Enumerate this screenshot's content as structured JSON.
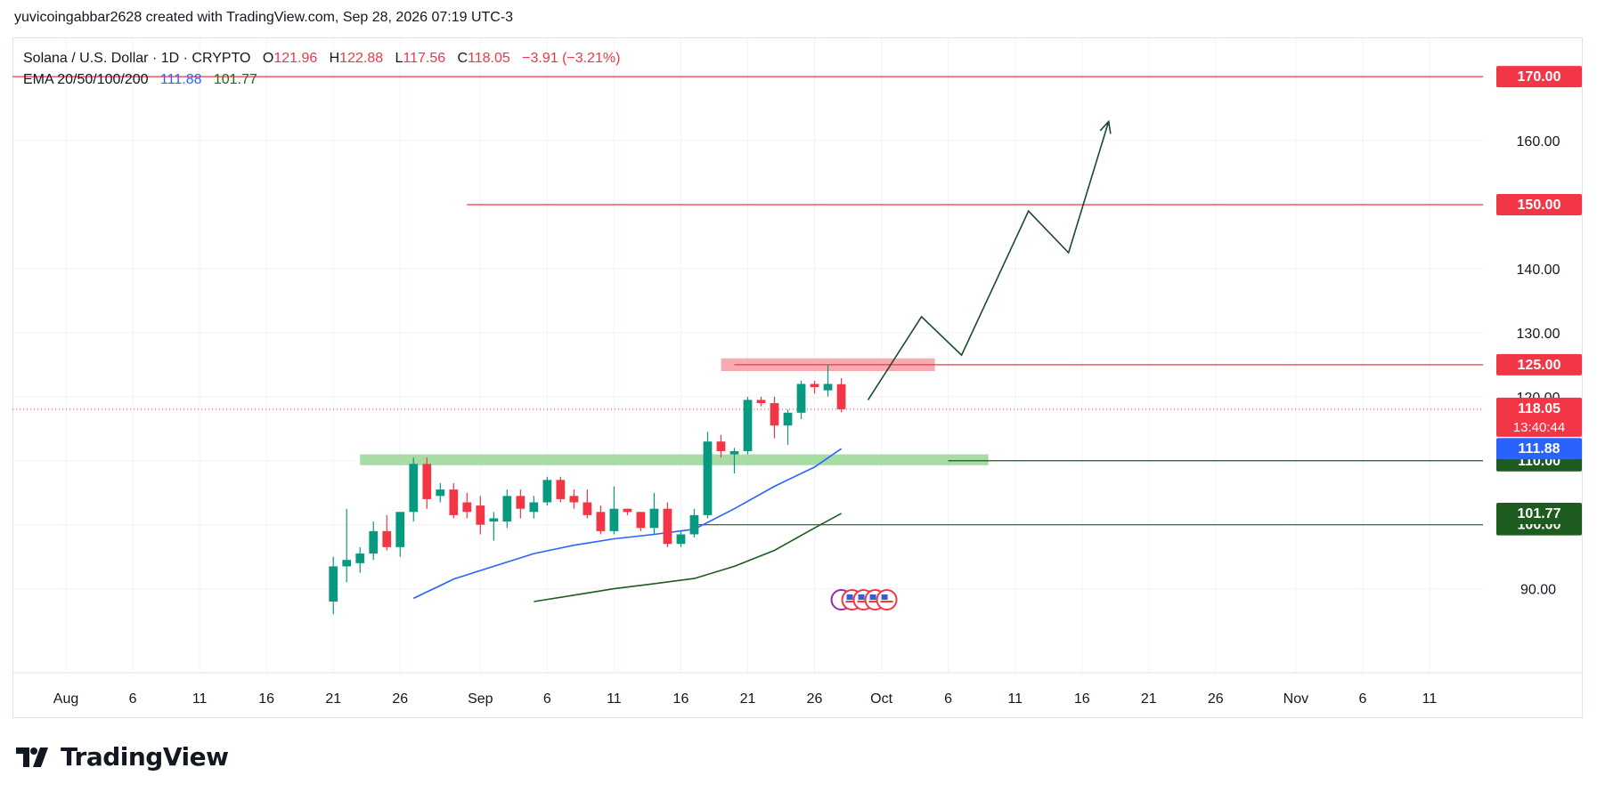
{
  "header": {
    "text": "yuvicoingabbar2628 created with TradingView.com, Sep 28, 2026 07:19 UTC-3"
  },
  "legend": {
    "symbol": "Solana / U.S. Dollar · 1D · CRYPTO",
    "o_label": "O",
    "o_value": "121.96",
    "h_label": "H",
    "h_value": "122.88",
    "l_label": "L",
    "l_value": "117.56",
    "c_label": "C",
    "c_value": "118.05",
    "change": "−3.91 (−3.21%)",
    "ema_label": "EMA 20/50/100/200",
    "ema_20": "111.88",
    "ema_50": "101.77"
  },
  "brand": {
    "name": "TradingView"
  },
  "colors": {
    "up": "#089981",
    "down": "#f23645",
    "grid": "#f0f3fa",
    "text": "#131722",
    "ema20": "#2962ff",
    "ema50": "#1e5b1e",
    "resistance": "#f23645",
    "support": "#1e5b1e",
    "zone_red": "#f7a1a8",
    "zone_green": "#9fd89b",
    "projection": "#1c4a2a"
  },
  "chart_data": {
    "type": "candlestick",
    "symbol": "SOLUSD",
    "interval": "1D",
    "ylim": [
      88,
      176
    ],
    "yticks": [
      90,
      100,
      110,
      120,
      130,
      140,
      160
    ],
    "xlim": [
      "2026-07-28",
      "2026-11-15"
    ],
    "x_ticks": [
      {
        "date": "2026-08-01",
        "label": "Aug"
      },
      {
        "date": "2026-08-06",
        "label": "6"
      },
      {
        "date": "2026-08-11",
        "label": "11"
      },
      {
        "date": "2026-08-16",
        "label": "16"
      },
      {
        "date": "2026-08-21",
        "label": "21"
      },
      {
        "date": "2026-08-26",
        "label": "26"
      },
      {
        "date": "2026-09-01",
        "label": "Sep"
      },
      {
        "date": "2026-09-06",
        "label": "6"
      },
      {
        "date": "2026-09-11",
        "label": "11"
      },
      {
        "date": "2026-09-16",
        "label": "16"
      },
      {
        "date": "2026-09-21",
        "label": "21"
      },
      {
        "date": "2026-09-26",
        "label": "26"
      },
      {
        "date": "2026-10-01",
        "label": "Oct"
      },
      {
        "date": "2026-10-06",
        "label": "6"
      },
      {
        "date": "2026-10-11",
        "label": "11"
      },
      {
        "date": "2026-10-16",
        "label": "16"
      },
      {
        "date": "2026-10-21",
        "label": "21"
      },
      {
        "date": "2026-10-26",
        "label": "26"
      },
      {
        "date": "2026-11-01",
        "label": "Nov"
      },
      {
        "date": "2026-11-06",
        "label": "6"
      },
      {
        "date": "2026-11-11",
        "label": "11"
      }
    ],
    "candles": [
      {
        "d": "2026-08-21",
        "o": 88.0,
        "h": 95.0,
        "l": 86.0,
        "c": 93.5
      },
      {
        "d": "2026-08-22",
        "o": 93.5,
        "h": 102.5,
        "l": 91.0,
        "c": 94.5
      },
      {
        "d": "2026-08-23",
        "o": 94.0,
        "h": 96.5,
        "l": 92.5,
        "c": 95.5
      },
      {
        "d": "2026-08-24",
        "o": 95.5,
        "h": 100.5,
        "l": 94.5,
        "c": 99.0
      },
      {
        "d": "2026-08-25",
        "o": 99.0,
        "h": 101.5,
        "l": 96.0,
        "c": 96.5
      },
      {
        "d": "2026-08-26",
        "o": 96.5,
        "h": 102.0,
        "l": 95.0,
        "c": 102.0
      },
      {
        "d": "2026-08-27",
        "o": 102.0,
        "h": 110.5,
        "l": 100.5,
        "c": 109.5
      },
      {
        "d": "2026-08-28",
        "o": 109.5,
        "h": 110.5,
        "l": 102.5,
        "c": 104.0
      },
      {
        "d": "2026-08-29",
        "o": 104.5,
        "h": 106.5,
        "l": 103.5,
        "c": 105.5
      },
      {
        "d": "2026-08-30",
        "o": 105.5,
        "h": 106.5,
        "l": 101.0,
        "c": 101.5
      },
      {
        "d": "2026-08-31",
        "o": 103.5,
        "h": 105.0,
        "l": 101.0,
        "c": 102.0
      },
      {
        "d": "2026-09-01",
        "o": 103.0,
        "h": 104.5,
        "l": 98.5,
        "c": 100.0
      },
      {
        "d": "2026-09-02",
        "o": 100.5,
        "h": 102.0,
        "l": 97.5,
        "c": 101.0
      },
      {
        "d": "2026-09-03",
        "o": 100.5,
        "h": 105.5,
        "l": 99.5,
        "c": 104.5
      },
      {
        "d": "2026-09-04",
        "o": 104.5,
        "h": 105.5,
        "l": 101.0,
        "c": 102.5
      },
      {
        "d": "2026-09-05",
        "o": 102.0,
        "h": 104.5,
        "l": 101.0,
        "c": 103.5
      },
      {
        "d": "2026-09-06",
        "o": 103.5,
        "h": 107.5,
        "l": 103.0,
        "c": 107.0
      },
      {
        "d": "2026-09-07",
        "o": 107.0,
        "h": 107.5,
        "l": 103.5,
        "c": 104.0
      },
      {
        "d": "2026-09-08",
        "o": 104.5,
        "h": 105.5,
        "l": 102.5,
        "c": 103.5
      },
      {
        "d": "2026-09-09",
        "o": 103.5,
        "h": 105.5,
        "l": 101.0,
        "c": 101.5
      },
      {
        "d": "2026-09-10",
        "o": 102.0,
        "h": 103.0,
        "l": 98.5,
        "c": 99.0
      },
      {
        "d": "2026-09-11",
        "o": 99.0,
        "h": 106.0,
        "l": 98.5,
        "c": 102.5
      },
      {
        "d": "2026-09-12",
        "o": 102.5,
        "h": 102.5,
        "l": 101.5,
        "c": 102.0
      },
      {
        "d": "2026-09-13",
        "o": 102.0,
        "h": 102.0,
        "l": 99.0,
        "c": 99.5
      },
      {
        "d": "2026-09-14",
        "o": 99.5,
        "h": 105.0,
        "l": 98.5,
        "c": 102.5
      },
      {
        "d": "2026-09-15",
        "o": 102.5,
        "h": 103.5,
        "l": 96.5,
        "c": 97.0
      },
      {
        "d": "2026-09-16",
        "o": 97.0,
        "h": 99.0,
        "l": 96.5,
        "c": 98.5
      },
      {
        "d": "2026-09-17",
        "o": 98.5,
        "h": 102.5,
        "l": 98.0,
        "c": 101.5
      },
      {
        "d": "2026-09-18",
        "o": 101.5,
        "h": 114.5,
        "l": 101.0,
        "c": 113.0
      },
      {
        "d": "2026-09-19",
        "o": 113.0,
        "h": 114.0,
        "l": 110.5,
        "c": 111.5
      },
      {
        "d": "2026-09-20",
        "o": 111.0,
        "h": 112.0,
        "l": 108.0,
        "c": 111.5
      },
      {
        "d": "2026-09-21",
        "o": 111.5,
        "h": 120.0,
        "l": 111.0,
        "c": 119.5
      },
      {
        "d": "2026-09-22",
        "o": 119.5,
        "h": 120.0,
        "l": 118.5,
        "c": 119.0
      },
      {
        "d": "2026-09-23",
        "o": 119.0,
        "h": 120.0,
        "l": 113.5,
        "c": 115.5
      },
      {
        "d": "2026-09-24",
        "o": 115.5,
        "h": 118.0,
        "l": 112.5,
        "c": 117.5
      },
      {
        "d": "2026-09-25",
        "o": 117.5,
        "h": 122.5,
        "l": 116.5,
        "c": 122.0
      },
      {
        "d": "2026-09-26",
        "o": 122.0,
        "h": 122.5,
        "l": 120.5,
        "c": 121.5
      },
      {
        "d": "2026-09-27",
        "o": 121.0,
        "h": 125.0,
        "l": 120.0,
        "c": 122.0
      },
      {
        "d": "2026-09-28",
        "o": 121.96,
        "h": 122.88,
        "l": 117.56,
        "c": 118.05
      }
    ],
    "ema20": [
      {
        "d": "2026-08-27",
        "v": 88.5
      },
      {
        "d": "2026-08-30",
        "v": 91.5
      },
      {
        "d": "2026-09-02",
        "v": 93.5
      },
      {
        "d": "2026-09-05",
        "v": 95.5
      },
      {
        "d": "2026-09-08",
        "v": 96.8
      },
      {
        "d": "2026-09-11",
        "v": 97.8
      },
      {
        "d": "2026-09-14",
        "v": 98.5
      },
      {
        "d": "2026-09-17",
        "v": 99.3
      },
      {
        "d": "2026-09-20",
        "v": 102.5
      },
      {
        "d": "2026-09-23",
        "v": 106.0
      },
      {
        "d": "2026-09-26",
        "v": 109.0
      },
      {
        "d": "2026-09-28",
        "v": 111.88
      }
    ],
    "ema50": [
      {
        "d": "2026-09-05",
        "v": 88.0
      },
      {
        "d": "2026-09-08",
        "v": 89.0
      },
      {
        "d": "2026-09-11",
        "v": 90.0
      },
      {
        "d": "2026-09-14",
        "v": 90.8
      },
      {
        "d": "2026-09-17",
        "v": 91.6
      },
      {
        "d": "2026-09-20",
        "v": 93.5
      },
      {
        "d": "2026-09-23",
        "v": 96.0
      },
      {
        "d": "2026-09-26",
        "v": 99.5
      },
      {
        "d": "2026-09-28",
        "v": 101.77
      }
    ],
    "horizontal_lines": [
      {
        "price": 170.0,
        "label": "170.00",
        "color": "#f23645",
        "from": "2026-07-28"
      },
      {
        "price": 150.0,
        "label": "150.00",
        "color": "#f23645",
        "from": "2026-08-31"
      },
      {
        "price": 125.0,
        "label": "125.00",
        "color": "#f23645",
        "from": "2026-09-20"
      },
      {
        "price": 110.0,
        "label": "110.00",
        "color": "#1e5b1e",
        "from": "2026-10-06"
      },
      {
        "price": 100.0,
        "label": "100.00",
        "color": "#1e5b1e",
        "from": "2026-09-17"
      }
    ],
    "zones": [
      {
        "from": "2026-09-19",
        "to": "2026-10-05",
        "low": 124.0,
        "high": 126.0,
        "color": "#f7a1a8"
      },
      {
        "from": "2026-08-23",
        "to": "2026-10-09",
        "low": 109.3,
        "high": 111.0,
        "color": "#9fd89b"
      }
    ],
    "projection": [
      {
        "d": "2026-09-30",
        "v": 119.5
      },
      {
        "d": "2026-10-04",
        "v": 132.5
      },
      {
        "d": "2026-10-07",
        "v": 126.5
      },
      {
        "d": "2026-10-12",
        "v": 149.0
      },
      {
        "d": "2026-10-15",
        "v": 142.5
      },
      {
        "d": "2026-10-18",
        "v": 163.0
      }
    ],
    "last_price": {
      "value": 118.05,
      "label": "118.05",
      "countdown": "13:40:44",
      "color": "#f23645"
    },
    "ema_tags": [
      {
        "value": 111.88,
        "label": "111.88",
        "color": "#2962ff"
      },
      {
        "value": 101.77,
        "label": "101.77",
        "color": "#1e5b1e"
      }
    ]
  }
}
